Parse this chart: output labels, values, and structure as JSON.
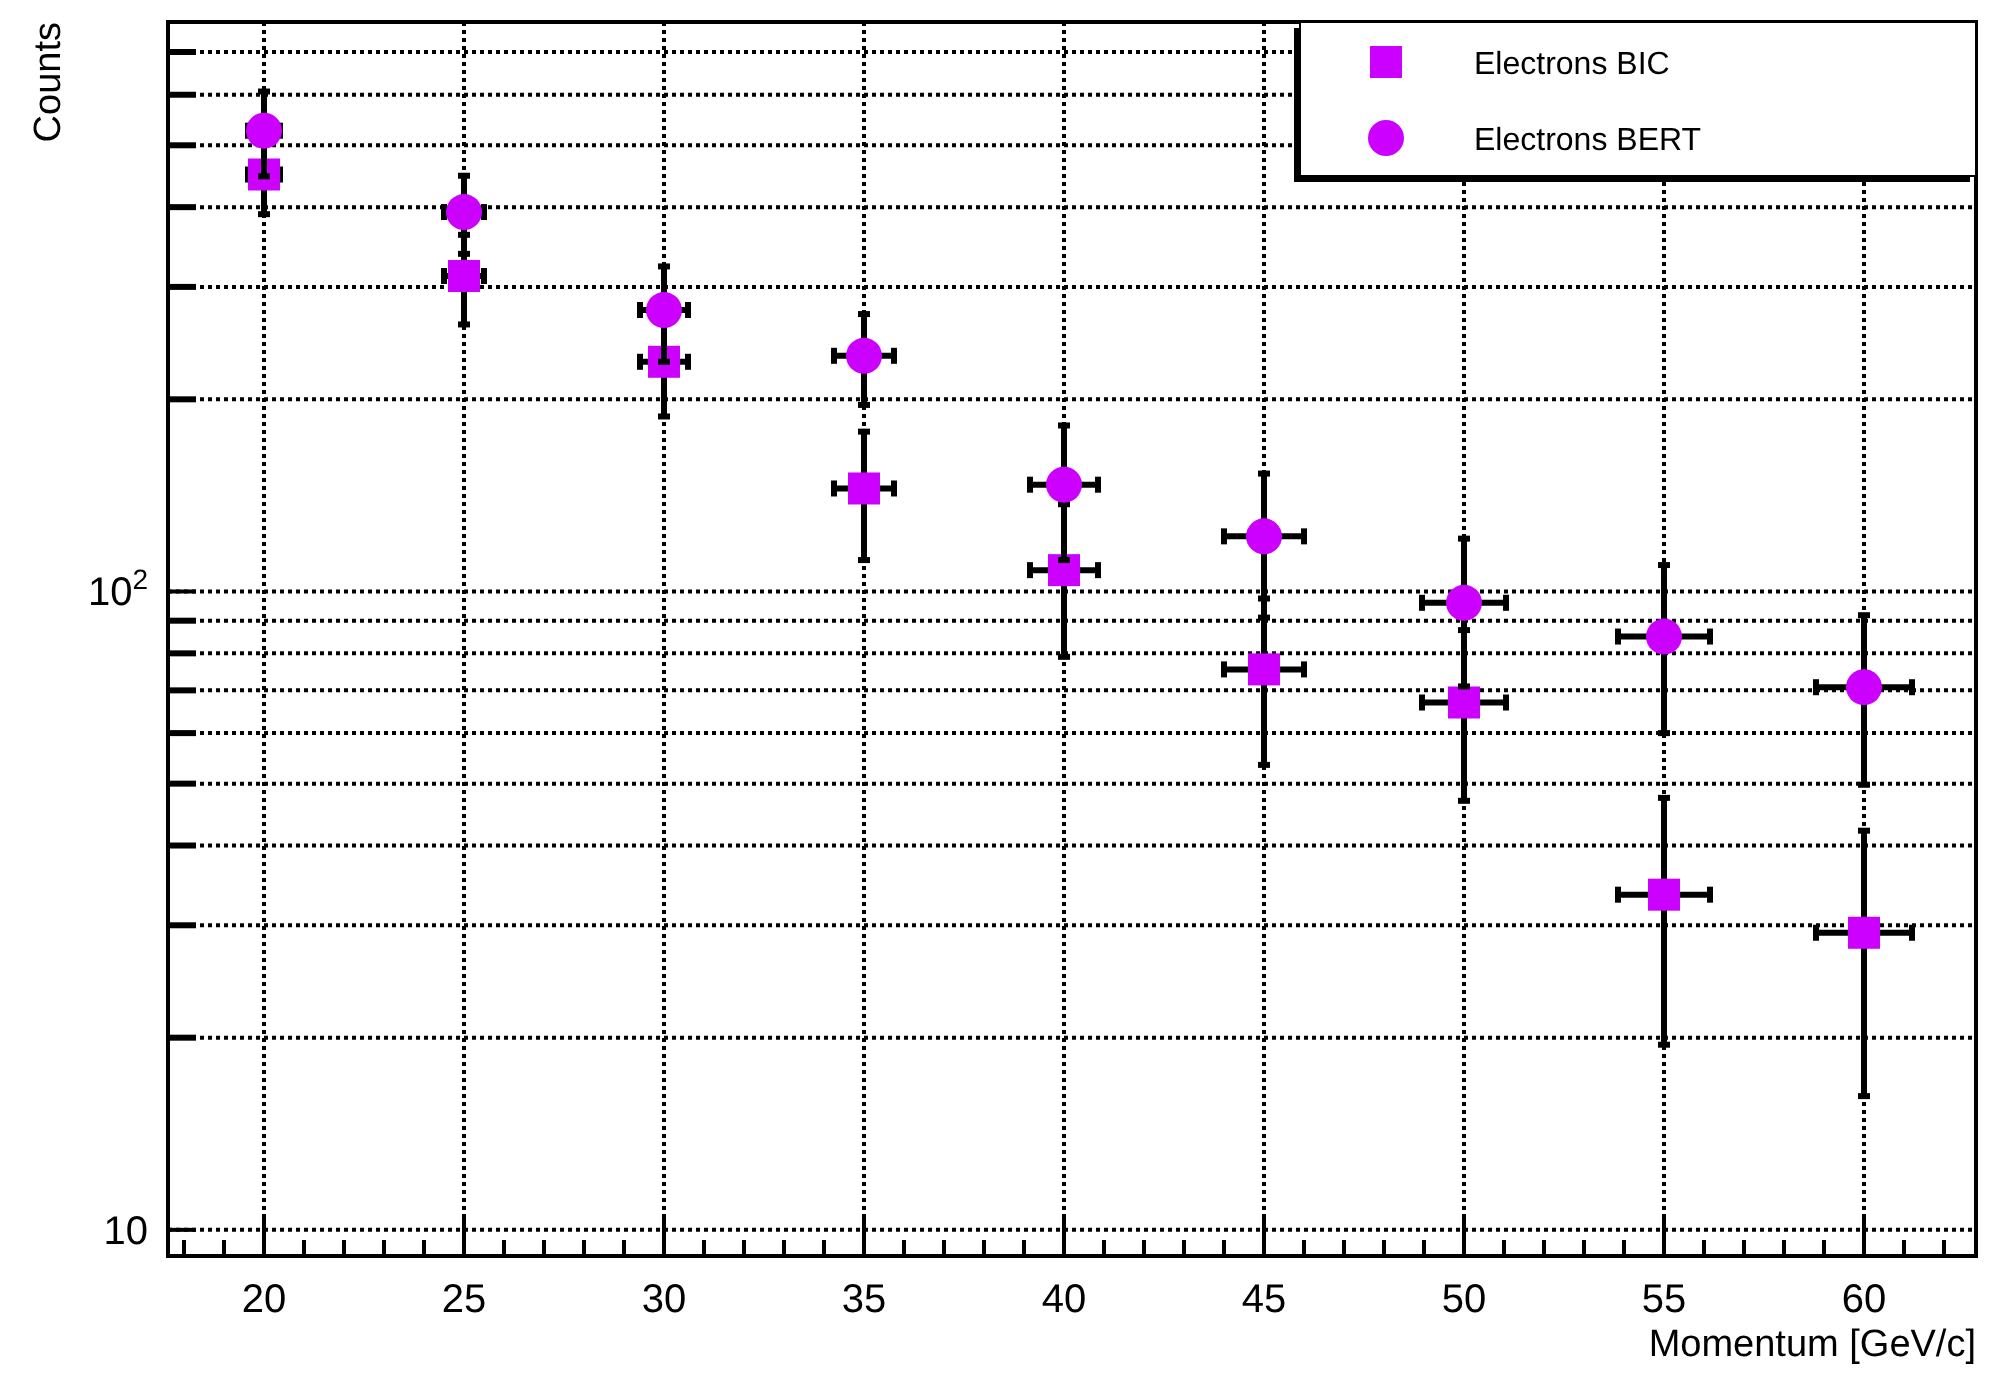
{
  "chart_data": {
    "type": "scatter",
    "xlabel": "Momentum [GeV/c]",
    "ylabel": "Counts",
    "x": [
      20,
      25,
      30,
      35,
      40,
      45,
      50,
      55,
      60
    ],
    "series": [
      {
        "name": "Electrons BIC",
        "color": "#cc00ff",
        "marker": "square",
        "values": [
          450,
          312,
          229,
          145,
          108,
          75.5,
          67,
          33.5,
          29.2
        ],
        "errors": [
          60,
          50,
          41,
          33,
          29,
          22,
          20,
          14,
          13
        ],
        "xerrors": [
          0.4,
          0.5,
          0.6,
          0.75,
          0.85,
          1.0,
          1.05,
          1.15,
          1.2
        ]
      },
      {
        "name": "Electrons BERT",
        "color": "#cc00ff",
        "marker": "circle",
        "values": [
          527,
          393,
          276,
          234,
          147,
          122,
          96,
          85,
          70.8
        ],
        "errors": [
          80,
          55,
          47,
          38,
          35,
          31,
          25,
          25,
          21
        ],
        "xerrors": [
          0.4,
          0.5,
          0.6,
          0.75,
          0.85,
          1.0,
          1.05,
          1.15,
          1.2
        ]
      }
    ],
    "log": "y",
    "xlim": [
      17.6,
      62.8
    ],
    "ylim": [
      9.1,
      780
    ],
    "xticks": [
      20,
      25,
      30,
      35,
      40,
      45,
      50,
      55,
      60
    ],
    "yticks": [
      10,
      {
        "value": 20,
        "label": null
      },
      {
        "value": 30,
        "label": null
      },
      {
        "value": 40,
        "label": null
      },
      {
        "value": 50,
        "label": null
      },
      {
        "value": 60,
        "label": null
      },
      {
        "value": 70,
        "label": null
      },
      {
        "value": 80,
        "label": null
      },
      {
        "value": 90,
        "label": null
      },
      {
        "value": 100,
        "label": "10$^{2}$"
      },
      {
        "value": 200,
        "label": null
      },
      {
        "value": 300,
        "label": null
      },
      {
        "value": 400,
        "label": null
      },
      {
        "value": 500,
        "label": null
      },
      {
        "value": 600,
        "label": null
      },
      {
        "value": 700,
        "label": null
      }
    ],
    "grid": true,
    "legend": "top right",
    "line_style": "dotted"
  }
}
